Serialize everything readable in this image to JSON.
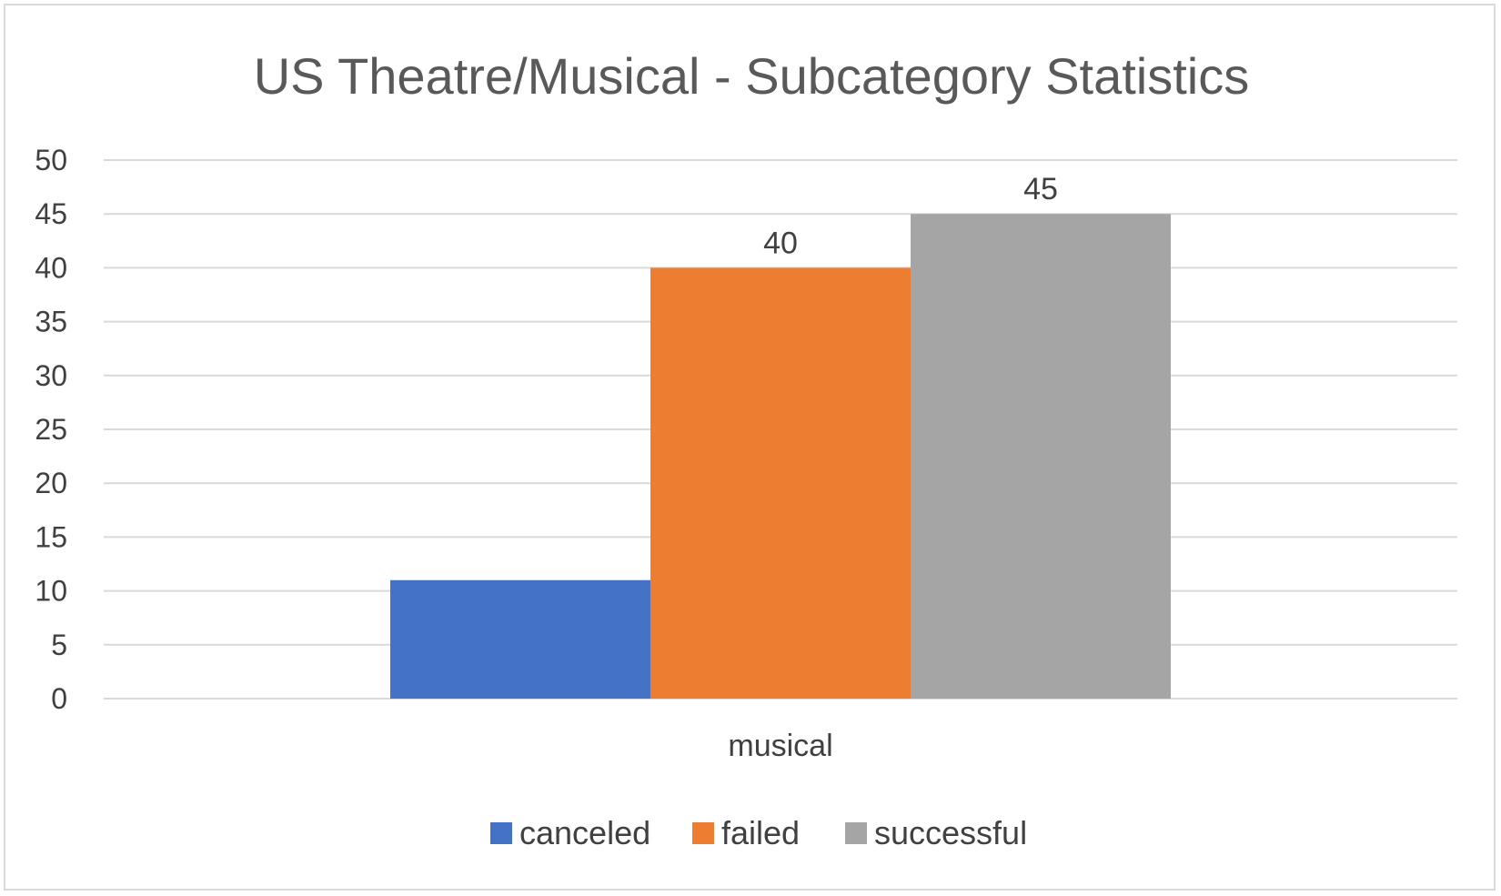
{
  "chart_data": {
    "type": "bar",
    "title": "US Theatre/Musical - Subcategory Statistics",
    "xlabel": "",
    "ylabel": "",
    "categories": [
      "musical"
    ],
    "series": [
      {
        "name": "canceled",
        "values": [
          11
        ],
        "color": "#4472C4",
        "data_label": ""
      },
      {
        "name": "failed",
        "values": [
          40
        ],
        "color": "#ED7D31",
        "data_label": "40"
      },
      {
        "name": "successful",
        "values": [
          45
        ],
        "color": "#A5A5A5",
        "data_label": "45"
      }
    ],
    "ylim": [
      0,
      50
    ],
    "yticks": [
      0,
      5,
      10,
      15,
      20,
      25,
      30,
      35,
      40,
      45,
      50
    ],
    "grid": true,
    "legend_position": "bottom"
  }
}
